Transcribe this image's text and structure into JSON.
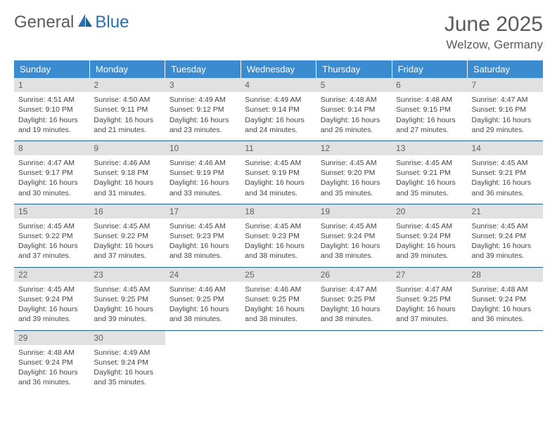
{
  "logo": {
    "text1": "General",
    "text2": "Blue"
  },
  "title": "June 2025",
  "location": "Welzow, Germany",
  "colors": {
    "header_bg": "#3b8bd0",
    "header_text": "#ffffff",
    "cell_border": "#1f5f8b",
    "daynum_bg": "#e1e1e1",
    "body_text": "#444444",
    "title_text": "#5a5a5a"
  },
  "weekdays": [
    "Sunday",
    "Monday",
    "Tuesday",
    "Wednesday",
    "Thursday",
    "Friday",
    "Saturday"
  ],
  "weeks": [
    [
      {
        "day": "1",
        "sunrise": "Sunrise: 4:51 AM",
        "sunset": "Sunset: 9:10 PM",
        "daylight": "Daylight: 16 hours and 19 minutes."
      },
      {
        "day": "2",
        "sunrise": "Sunrise: 4:50 AM",
        "sunset": "Sunset: 9:11 PM",
        "daylight": "Daylight: 16 hours and 21 minutes."
      },
      {
        "day": "3",
        "sunrise": "Sunrise: 4:49 AM",
        "sunset": "Sunset: 9:12 PM",
        "daylight": "Daylight: 16 hours and 23 minutes."
      },
      {
        "day": "4",
        "sunrise": "Sunrise: 4:49 AM",
        "sunset": "Sunset: 9:14 PM",
        "daylight": "Daylight: 16 hours and 24 minutes."
      },
      {
        "day": "5",
        "sunrise": "Sunrise: 4:48 AM",
        "sunset": "Sunset: 9:14 PM",
        "daylight": "Daylight: 16 hours and 26 minutes."
      },
      {
        "day": "6",
        "sunrise": "Sunrise: 4:48 AM",
        "sunset": "Sunset: 9:15 PM",
        "daylight": "Daylight: 16 hours and 27 minutes."
      },
      {
        "day": "7",
        "sunrise": "Sunrise: 4:47 AM",
        "sunset": "Sunset: 9:16 PM",
        "daylight": "Daylight: 16 hours and 29 minutes."
      }
    ],
    [
      {
        "day": "8",
        "sunrise": "Sunrise: 4:47 AM",
        "sunset": "Sunset: 9:17 PM",
        "daylight": "Daylight: 16 hours and 30 minutes."
      },
      {
        "day": "9",
        "sunrise": "Sunrise: 4:46 AM",
        "sunset": "Sunset: 9:18 PM",
        "daylight": "Daylight: 16 hours and 31 minutes."
      },
      {
        "day": "10",
        "sunrise": "Sunrise: 4:46 AM",
        "sunset": "Sunset: 9:19 PM",
        "daylight": "Daylight: 16 hours and 33 minutes."
      },
      {
        "day": "11",
        "sunrise": "Sunrise: 4:45 AM",
        "sunset": "Sunset: 9:19 PM",
        "daylight": "Daylight: 16 hours and 34 minutes."
      },
      {
        "day": "12",
        "sunrise": "Sunrise: 4:45 AM",
        "sunset": "Sunset: 9:20 PM",
        "daylight": "Daylight: 16 hours and 35 minutes."
      },
      {
        "day": "13",
        "sunrise": "Sunrise: 4:45 AM",
        "sunset": "Sunset: 9:21 PM",
        "daylight": "Daylight: 16 hours and 35 minutes."
      },
      {
        "day": "14",
        "sunrise": "Sunrise: 4:45 AM",
        "sunset": "Sunset: 9:21 PM",
        "daylight": "Daylight: 16 hours and 36 minutes."
      }
    ],
    [
      {
        "day": "15",
        "sunrise": "Sunrise: 4:45 AM",
        "sunset": "Sunset: 9:22 PM",
        "daylight": "Daylight: 16 hours and 37 minutes."
      },
      {
        "day": "16",
        "sunrise": "Sunrise: 4:45 AM",
        "sunset": "Sunset: 9:22 PM",
        "daylight": "Daylight: 16 hours and 37 minutes."
      },
      {
        "day": "17",
        "sunrise": "Sunrise: 4:45 AM",
        "sunset": "Sunset: 9:23 PM",
        "daylight": "Daylight: 16 hours and 38 minutes."
      },
      {
        "day": "18",
        "sunrise": "Sunrise: 4:45 AM",
        "sunset": "Sunset: 9:23 PM",
        "daylight": "Daylight: 16 hours and 38 minutes."
      },
      {
        "day": "19",
        "sunrise": "Sunrise: 4:45 AM",
        "sunset": "Sunset: 9:24 PM",
        "daylight": "Daylight: 16 hours and 38 minutes."
      },
      {
        "day": "20",
        "sunrise": "Sunrise: 4:45 AM",
        "sunset": "Sunset: 9:24 PM",
        "daylight": "Daylight: 16 hours and 39 minutes."
      },
      {
        "day": "21",
        "sunrise": "Sunrise: 4:45 AM",
        "sunset": "Sunset: 9:24 PM",
        "daylight": "Daylight: 16 hours and 39 minutes."
      }
    ],
    [
      {
        "day": "22",
        "sunrise": "Sunrise: 4:45 AM",
        "sunset": "Sunset: 9:24 PM",
        "daylight": "Daylight: 16 hours and 39 minutes."
      },
      {
        "day": "23",
        "sunrise": "Sunrise: 4:45 AM",
        "sunset": "Sunset: 9:25 PM",
        "daylight": "Daylight: 16 hours and 39 minutes."
      },
      {
        "day": "24",
        "sunrise": "Sunrise: 4:46 AM",
        "sunset": "Sunset: 9:25 PM",
        "daylight": "Daylight: 16 hours and 38 minutes."
      },
      {
        "day": "25",
        "sunrise": "Sunrise: 4:46 AM",
        "sunset": "Sunset: 9:25 PM",
        "daylight": "Daylight: 16 hours and 38 minutes."
      },
      {
        "day": "26",
        "sunrise": "Sunrise: 4:47 AM",
        "sunset": "Sunset: 9:25 PM",
        "daylight": "Daylight: 16 hours and 38 minutes."
      },
      {
        "day": "27",
        "sunrise": "Sunrise: 4:47 AM",
        "sunset": "Sunset: 9:25 PM",
        "daylight": "Daylight: 16 hours and 37 minutes."
      },
      {
        "day": "28",
        "sunrise": "Sunrise: 4:48 AM",
        "sunset": "Sunset: 9:24 PM",
        "daylight": "Daylight: 16 hours and 36 minutes."
      }
    ],
    [
      {
        "day": "29",
        "sunrise": "Sunrise: 4:48 AM",
        "sunset": "Sunset: 9:24 PM",
        "daylight": "Daylight: 16 hours and 36 minutes."
      },
      {
        "day": "30",
        "sunrise": "Sunrise: 4:49 AM",
        "sunset": "Sunset: 9:24 PM",
        "daylight": "Daylight: 16 hours and 35 minutes."
      },
      null,
      null,
      null,
      null,
      null
    ]
  ]
}
